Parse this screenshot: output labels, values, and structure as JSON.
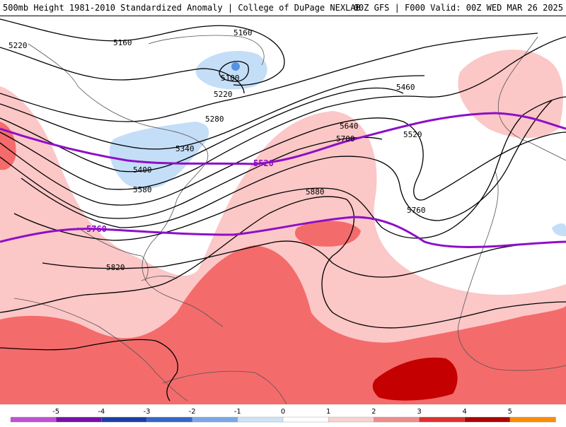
{
  "header": {
    "title_left": "500mb Height 1981-2010 Standardized Anomaly | College of DuPage NEXLAB",
    "title_right": "00Z GFS | F000 Valid: 00Z WED MAR 26 2025"
  },
  "map": {
    "contour_labels": [
      "5220",
      "5160",
      "5160",
      "5100",
      "5220",
      "5280",
      "5340",
      "5400",
      "5460",
      "5520",
      "5580",
      "5640",
      "5700",
      "5760",
      "5820",
      "5880"
    ],
    "thick_contour_labels": [
      "5520",
      "5760"
    ],
    "colors": {
      "contour": "#000000",
      "thick_contour": "#8e0fc7",
      "anom_pos_1": "#fcc7c7",
      "anom_pos_2": "#f46b6b",
      "anom_pos_3": "#c40000",
      "anom_neg_1": "#c4def8",
      "anom_neg_2": "#5592e0",
      "coastline": "#555555"
    }
  },
  "colorbar": {
    "ticks": [
      "-5",
      "-4",
      "-3",
      "-2",
      "-1",
      "0",
      "1",
      "2",
      "3",
      "4",
      "5"
    ],
    "colors": [
      "#c24fd6",
      "#7b0dab",
      "#1a3ea8",
      "#3466c9",
      "#7aa7ea",
      "#cfe3f7",
      "#ffffff",
      "#fbd0d0",
      "#f28a8a",
      "#e22e2e",
      "#b00000",
      "#ff8c00"
    ]
  }
}
